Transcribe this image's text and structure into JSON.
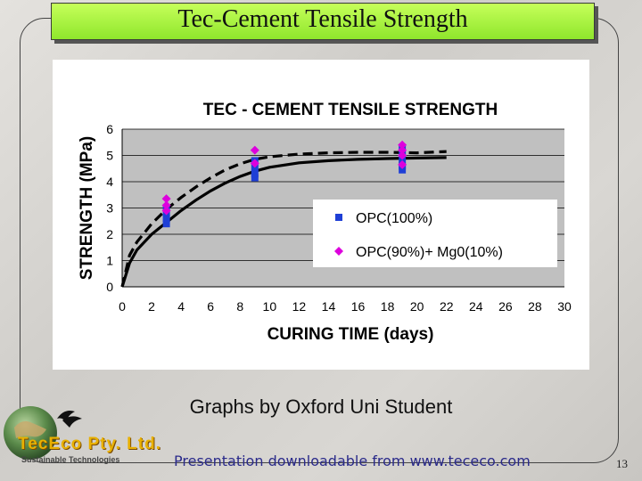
{
  "slide": {
    "title": "Tec-Cement Tensile Strength",
    "credit": "Graphs by Oxford Uni Student",
    "download": "Presentation downloadable from www.tececo.com",
    "page_number": "13",
    "logo_text": "TecEco Pty. Ltd.",
    "logo_subtitle": "Sustainable Technologies"
  },
  "chart_data": {
    "type": "scatter",
    "title": "TEC - CEMENT TENSILE STRENGTH",
    "xlabel": "CURING TIME (days)",
    "ylabel": "STRENGTH (MPa)",
    "xlim": [
      0,
      30
    ],
    "ylim": [
      0,
      6
    ],
    "xticks": [
      0,
      2,
      4,
      6,
      8,
      10,
      12,
      14,
      16,
      18,
      20,
      22,
      24,
      26,
      28,
      30
    ],
    "yticks": [
      0,
      1,
      2,
      3,
      4,
      5,
      6
    ],
    "grid": "horizontal",
    "plot_background": "#c0c0c0",
    "legend_position": "right",
    "series": [
      {
        "name": "OPC(100%)",
        "marker": "square",
        "color": "#1f3fd6",
        "points": [
          [
            3,
            2.4
          ],
          [
            3,
            2.6
          ],
          [
            3,
            2.8
          ],
          [
            3,
            3.0
          ],
          [
            9,
            4.15
          ],
          [
            9,
            4.3
          ],
          [
            9,
            4.55
          ],
          [
            9,
            4.8
          ],
          [
            19,
            4.45
          ],
          [
            19,
            4.6
          ],
          [
            19,
            4.85
          ],
          [
            19,
            5.1
          ],
          [
            19,
            5.3
          ]
        ],
        "trend": [
          [
            0,
            0
          ],
          [
            0.5,
            0.9
          ],
          [
            1,
            1.4
          ],
          [
            2,
            2.0
          ],
          [
            3,
            2.45
          ],
          [
            4,
            2.9
          ],
          [
            5,
            3.3
          ],
          [
            6,
            3.65
          ],
          [
            7,
            3.95
          ],
          [
            8,
            4.2
          ],
          [
            9,
            4.4
          ],
          [
            10,
            4.55
          ],
          [
            12,
            4.72
          ],
          [
            14,
            4.8
          ],
          [
            16,
            4.85
          ],
          [
            18,
            4.88
          ],
          [
            20,
            4.9
          ],
          [
            22,
            4.92
          ]
        ]
      },
      {
        "name": "OPC(90%)+ Mg0(10%)",
        "marker": "diamond",
        "color": "#dd00dd",
        "points": [
          [
            3,
            2.9
          ],
          [
            3,
            3.1
          ],
          [
            3,
            3.35
          ],
          [
            9,
            4.7
          ],
          [
            9,
            5.2
          ],
          [
            19,
            4.65
          ],
          [
            19,
            5.0
          ],
          [
            19,
            5.2
          ],
          [
            19,
            5.4
          ]
        ],
        "trend": [
          [
            0,
            0
          ],
          [
            0.5,
            1.2
          ],
          [
            1,
            1.7
          ],
          [
            2,
            2.4
          ],
          [
            3,
            2.95
          ],
          [
            4,
            3.4
          ],
          [
            5,
            3.8
          ],
          [
            6,
            4.15
          ],
          [
            7,
            4.45
          ],
          [
            8,
            4.68
          ],
          [
            9,
            4.85
          ],
          [
            10,
            4.95
          ],
          [
            12,
            5.05
          ],
          [
            14,
            5.1
          ],
          [
            16,
            5.12
          ],
          [
            18,
            5.12
          ],
          [
            20,
            5.1
          ],
          [
            22,
            5.15
          ]
        ]
      }
    ]
  }
}
